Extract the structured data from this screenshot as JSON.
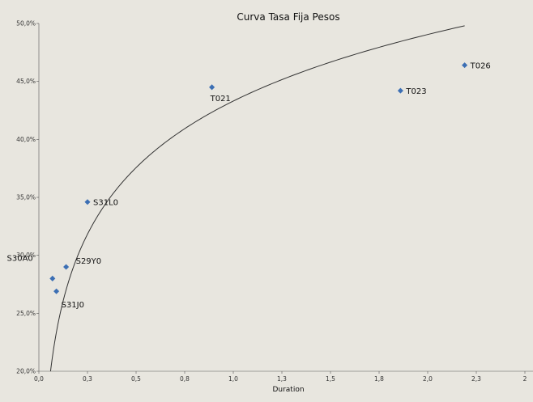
{
  "chart_data": {
    "type": "scatter",
    "title": "Curva Tasa Fija Pesos",
    "xlabel": "Duration",
    "ylabel": "",
    "xlim": [
      0,
      2.5
    ],
    "ylim": [
      20,
      50
    ],
    "x_ticks": [
      "0,0",
      "0,3",
      "0,5",
      "0,8",
      "1,0",
      "1,3",
      "1,5",
      "1,8",
      "2,0",
      "2,3",
      "2"
    ],
    "y_ticks": [
      "20,0%",
      "25,0%",
      "30,0%",
      "35,0%",
      "40,0%",
      "45,0%",
      "50,0%"
    ],
    "grid": false,
    "legend": "none",
    "marker_color": "#3c6fb4",
    "points": [
      {
        "label": "S30A0",
        "x": 0.07,
        "y": 28.0
      },
      {
        "label": "S31J0",
        "x": 0.09,
        "y": 26.9
      },
      {
        "label": "S29Y0",
        "x": 0.14,
        "y": 29.0
      },
      {
        "label": "S31L0",
        "x": 0.25,
        "y": 34.6
      },
      {
        "label": "T021",
        "x": 0.89,
        "y": 44.5
      },
      {
        "label": "T023",
        "x": 1.86,
        "y": 44.2
      },
      {
        "label": "T026",
        "x": 2.19,
        "y": 46.4
      }
    ],
    "trendline": {
      "type": "logarithmic",
      "x_start": 0.06,
      "x_end": 2.19,
      "y_start": 20.0,
      "y_end": 49.8
    }
  }
}
